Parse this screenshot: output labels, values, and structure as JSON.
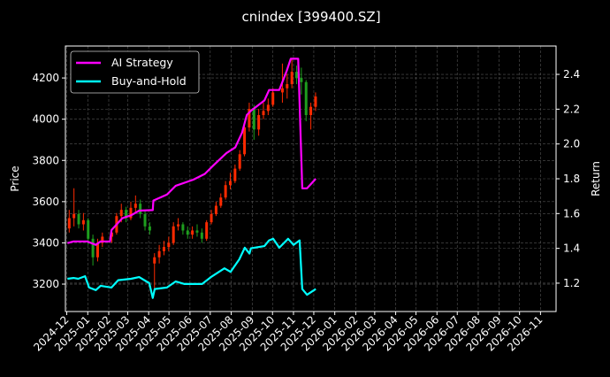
{
  "chart_data": {
    "type": "candlestick+line",
    "title": "cnindex [399400.SZ]",
    "ylabel_left": "Price",
    "ylabel_right": "Return",
    "xlim": [
      "2024-11-29",
      "2026-11-24"
    ],
    "ylim_left": [
      3067,
      4355
    ],
    "ylim_right": [
      1.037,
      2.563
    ],
    "grid": true,
    "legend_position": "top-left",
    "x_tick_labels": [
      "2024-12",
      "2025-01",
      "2025-02",
      "2025-03",
      "2025-04",
      "2025-05",
      "2025-06",
      "2025-07",
      "2025-08",
      "2025-09",
      "2025-10",
      "2025-11",
      "2025-12",
      "2026-01",
      "2026-02",
      "2026-03",
      "2026-04",
      "2026-05",
      "2026-06",
      "2026-07",
      "2026-08",
      "2026-09",
      "2026-10",
      "2026-11"
    ],
    "y_left_ticks": [
      3200,
      3400,
      3600,
      3800,
      4000,
      4200
    ],
    "y_right_ticks": [
      1.2,
      1.4,
      1.6,
      1.8,
      2.0,
      2.2,
      2.4
    ],
    "colors": {
      "up": "#ff2a00",
      "down": "#1e9e1e",
      "strategy": "#ff00ff",
      "buy_hold": "#00ffff",
      "background": "#000000",
      "axes": "#ffffff"
    },
    "candles_columns": [
      "date",
      "open",
      "high",
      "low",
      "close"
    ],
    "candles": [
      [
        "2024-12-02",
        3470,
        3560,
        3450,
        3520
      ],
      [
        "2024-12-09",
        3520,
        3665,
        3480,
        3540
      ],
      [
        "2024-12-16",
        3540,
        3560,
        3470,
        3490
      ],
      [
        "2024-12-23",
        3490,
        3545,
        3460,
        3510
      ],
      [
        "2024-12-30",
        3510,
        3520,
        3390,
        3420
      ],
      [
        "2025-01-06",
        3420,
        3440,
        3290,
        3330
      ],
      [
        "2025-01-13",
        3330,
        3420,
        3310,
        3400
      ],
      [
        "2025-01-20",
        3400,
        3450,
        3380,
        3430
      ],
      [
        "2025-02-03",
        3430,
        3470,
        3400,
        3450
      ],
      [
        "2025-02-10",
        3450,
        3545,
        3440,
        3530
      ],
      [
        "2025-02-17",
        3530,
        3590,
        3500,
        3560
      ],
      [
        "2025-02-24",
        3560,
        3575,
        3500,
        3520
      ],
      [
        "2025-03-03",
        3520,
        3600,
        3510,
        3570
      ],
      [
        "2025-03-10",
        3570,
        3630,
        3550,
        3590
      ],
      [
        "2025-03-17",
        3590,
        3610,
        3520,
        3540
      ],
      [
        "2025-03-24",
        3540,
        3560,
        3460,
        3480
      ],
      [
        "2025-03-31",
        3480,
        3500,
        3440,
        3460
      ],
      [
        "2025-04-07",
        3300,
        3350,
        3175,
        3330
      ],
      [
        "2025-04-14",
        3330,
        3390,
        3300,
        3360
      ],
      [
        "2025-04-21",
        3360,
        3410,
        3340,
        3380
      ],
      [
        "2025-04-28",
        3380,
        3430,
        3360,
        3400
      ],
      [
        "2025-05-05",
        3400,
        3500,
        3390,
        3480
      ],
      [
        "2025-05-12",
        3480,
        3520,
        3460,
        3490
      ],
      [
        "2025-05-19",
        3490,
        3500,
        3440,
        3460
      ],
      [
        "2025-05-26",
        3460,
        3480,
        3420,
        3440
      ],
      [
        "2025-06-02",
        3440,
        3480,
        3420,
        3460
      ],
      [
        "2025-06-09",
        3460,
        3490,
        3430,
        3450
      ],
      [
        "2025-06-16",
        3450,
        3470,
        3400,
        3420
      ],
      [
        "2025-06-23",
        3420,
        3510,
        3410,
        3500
      ],
      [
        "2025-06-30",
        3500,
        3560,
        3490,
        3540
      ],
      [
        "2025-07-07",
        3540,
        3600,
        3530,
        3580
      ],
      [
        "2025-07-14",
        3580,
        3640,
        3570,
        3620
      ],
      [
        "2025-07-21",
        3620,
        3700,
        3610,
        3680
      ],
      [
        "2025-07-28",
        3680,
        3740,
        3660,
        3700
      ],
      [
        "2025-08-04",
        3700,
        3780,
        3690,
        3760
      ],
      [
        "2025-08-11",
        3760,
        3850,
        3750,
        3830
      ],
      [
        "2025-08-18",
        3830,
        3980,
        3820,
        3960
      ],
      [
        "2025-08-25",
        3960,
        4080,
        3940,
        4050
      ],
      [
        "2025-09-01",
        4050,
        4070,
        3900,
        3950
      ],
      [
        "2025-09-08",
        3950,
        4050,
        3920,
        4020
      ],
      [
        "2025-09-15",
        4020,
        4080,
        4000,
        4040
      ],
      [
        "2025-09-22",
        4040,
        4100,
        4020,
        4070
      ],
      [
        "2025-09-29",
        4070,
        4150,
        4060,
        4130
      ],
      [
        "2025-10-13",
        4130,
        4270,
        4080,
        4150
      ],
      [
        "2025-10-20",
        4150,
        4220,
        4100,
        4170
      ],
      [
        "2025-10-27",
        4170,
        4290,
        4150,
        4230
      ],
      [
        "2025-11-03",
        4230,
        4260,
        4170,
        4200
      ],
      [
        "2025-11-10",
        4200,
        4250,
        4120,
        4180
      ],
      [
        "2025-11-17",
        4180,
        4190,
        3990,
        4020
      ],
      [
        "2025-11-24",
        4020,
        4080,
        3950,
        4060
      ],
      [
        "2025-12-01",
        4060,
        4130,
        4040,
        4110
      ]
    ],
    "series": [
      {
        "name": "AI Strategy",
        "axis": "right",
        "points": [
          [
            "2024-12-02",
            1.43
          ],
          [
            "2024-12-11",
            1.44
          ],
          [
            "2024-12-31",
            1.44
          ],
          [
            "2025-01-13",
            1.42
          ],
          [
            "2025-01-20",
            1.44
          ],
          [
            "2025-02-03",
            1.44
          ],
          [
            "2025-02-05",
            1.505
          ],
          [
            "2025-02-21",
            1.573
          ],
          [
            "2025-03-06",
            1.59
          ],
          [
            "2025-03-18",
            1.617
          ],
          [
            "2025-04-07",
            1.62
          ],
          [
            "2025-04-08",
            1.675
          ],
          [
            "2025-04-28",
            1.709
          ],
          [
            "2025-05-11",
            1.76
          ],
          [
            "2025-06-06",
            1.795
          ],
          [
            "2025-06-23",
            1.828
          ],
          [
            "2025-07-06",
            1.878
          ],
          [
            "2025-07-25",
            1.948
          ],
          [
            "2025-08-07",
            1.98
          ],
          [
            "2025-08-17",
            2.065
          ],
          [
            "2025-08-24",
            2.167
          ],
          [
            "2025-08-30",
            2.19
          ],
          [
            "2025-09-19",
            2.25
          ],
          [
            "2025-09-26",
            2.31
          ],
          [
            "2025-10-11",
            2.31
          ],
          [
            "2025-10-22",
            2.42
          ],
          [
            "2025-10-28",
            2.49
          ],
          [
            "2025-11-08",
            2.49
          ],
          [
            "2025-11-14",
            1.745
          ],
          [
            "2025-11-21",
            1.745
          ],
          [
            "2025-12-04",
            1.8
          ]
        ]
      },
      {
        "name": "Buy-and-Hold",
        "axis": "right",
        "points": [
          [
            "2024-12-02",
            1.225
          ],
          [
            "2024-12-11",
            1.23
          ],
          [
            "2024-12-18",
            1.225
          ],
          [
            "2024-12-28",
            1.24
          ],
          [
            "2025-01-03",
            1.175
          ],
          [
            "2025-01-13",
            1.16
          ],
          [
            "2025-01-20",
            1.185
          ],
          [
            "2025-02-05",
            1.175
          ],
          [
            "2025-02-15",
            1.217
          ],
          [
            "2025-03-06",
            1.225
          ],
          [
            "2025-03-18",
            1.235
          ],
          [
            "2025-04-02",
            1.2
          ],
          [
            "2025-04-07",
            1.115
          ],
          [
            "2025-04-10",
            1.166
          ],
          [
            "2025-04-28",
            1.175
          ],
          [
            "2025-05-11",
            1.21
          ],
          [
            "2025-05-24",
            1.195
          ],
          [
            "2025-06-19",
            1.195
          ],
          [
            "2025-07-02",
            1.235
          ],
          [
            "2025-07-22",
            1.285
          ],
          [
            "2025-07-31",
            1.265
          ],
          [
            "2025-08-13",
            1.337
          ],
          [
            "2025-08-21",
            1.404
          ],
          [
            "2025-08-28",
            1.37
          ],
          [
            "2025-08-30",
            1.4
          ],
          [
            "2025-09-19",
            1.413
          ],
          [
            "2025-09-26",
            1.446
          ],
          [
            "2025-10-02",
            1.455
          ],
          [
            "2025-10-11",
            1.404
          ],
          [
            "2025-10-24",
            1.455
          ],
          [
            "2025-11-01",
            1.42
          ],
          [
            "2025-11-10",
            1.446
          ],
          [
            "2025-11-14",
            1.166
          ],
          [
            "2025-11-21",
            1.133
          ],
          [
            "2025-12-04",
            1.166
          ]
        ]
      }
    ]
  }
}
